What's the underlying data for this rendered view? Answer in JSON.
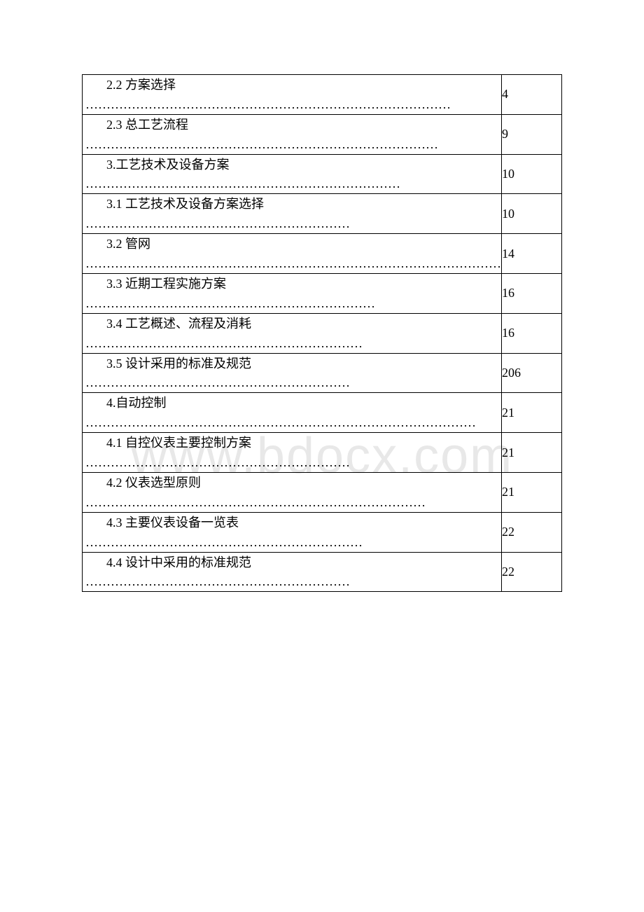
{
  "watermark": "www.bdocx.com",
  "toc": {
    "rows": [
      {
        "title": "2.2 方案选择",
        "dots": "……………………………………………………………………………",
        "page": "4"
      },
      {
        "title": "2.3 总工艺流程",
        "dots": "…………………………………………………………………………",
        "page": "9"
      },
      {
        "title": "3.工艺技术及设备方案",
        "dots": "…………………………………………………………………",
        "page": "10"
      },
      {
        "title": "3.1 工艺技术及设备方案选择",
        "dots": "………………………………………………………",
        "page": "10"
      },
      {
        "title": "3.2 管网",
        "dots": "………………………………………………………………………………………",
        "page": "14"
      },
      {
        "title": "3.3 近期工程实施方案",
        "dots": "……………………………………………………………",
        "page": "16"
      },
      {
        "title": "3.4 工艺概述、流程及消耗",
        "dots": "…………………………………………………………",
        "page": "16"
      },
      {
        "title": "3.5 设计采用的标准及规范",
        "dots": "………………………………………………………",
        "page": "206"
      },
      {
        "title": "4.自动控制",
        "dots": "…………………………………………………………………………………",
        "page": "21"
      },
      {
        "title": "4.1 自控仪表主要控制方案",
        "dots": "………………………………………………………",
        "page": "21"
      },
      {
        "title": "4.2 仪表选型原则",
        "dots": "………………………………………………………………………",
        "page": "21"
      },
      {
        "title": "4.3 主要仪表设备一览表",
        "dots": "…………………………………………………………",
        "page": "22"
      },
      {
        "title": "4.4 设计中采用的标准规范",
        "dots": "………………………………………………………",
        "page": "22"
      }
    ]
  }
}
